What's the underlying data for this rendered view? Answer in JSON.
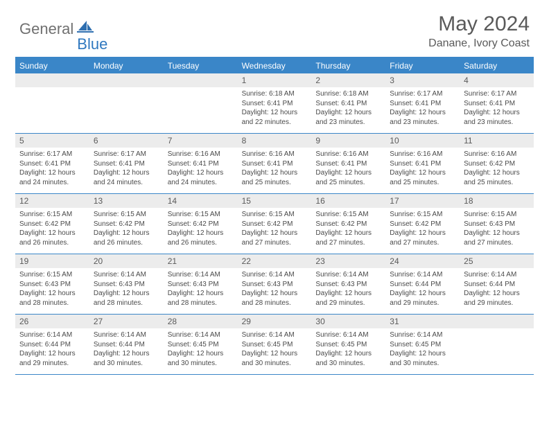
{
  "logo": {
    "text1": "General",
    "text2": "Blue"
  },
  "title": "May 2024",
  "location": "Danane, Ivory Coast",
  "colors": {
    "header_bg": "#3a86c8",
    "header_text": "#ffffff",
    "daynum_bg": "#ececec",
    "border": "#3a86c8",
    "text": "#4a4a4a",
    "logo_gray": "#707070",
    "logo_blue": "#2f78bf"
  },
  "weekdays": [
    "Sunday",
    "Monday",
    "Tuesday",
    "Wednesday",
    "Thursday",
    "Friday",
    "Saturday"
  ],
  "weeks": [
    [
      null,
      null,
      null,
      {
        "n": "1",
        "sr": "6:18 AM",
        "ss": "6:41 PM",
        "dl": "12 hours and 22 minutes."
      },
      {
        "n": "2",
        "sr": "6:18 AM",
        "ss": "6:41 PM",
        "dl": "12 hours and 23 minutes."
      },
      {
        "n": "3",
        "sr": "6:17 AM",
        "ss": "6:41 PM",
        "dl": "12 hours and 23 minutes."
      },
      {
        "n": "4",
        "sr": "6:17 AM",
        "ss": "6:41 PM",
        "dl": "12 hours and 23 minutes."
      }
    ],
    [
      {
        "n": "5",
        "sr": "6:17 AM",
        "ss": "6:41 PM",
        "dl": "12 hours and 24 minutes."
      },
      {
        "n": "6",
        "sr": "6:17 AM",
        "ss": "6:41 PM",
        "dl": "12 hours and 24 minutes."
      },
      {
        "n": "7",
        "sr": "6:16 AM",
        "ss": "6:41 PM",
        "dl": "12 hours and 24 minutes."
      },
      {
        "n": "8",
        "sr": "6:16 AM",
        "ss": "6:41 PM",
        "dl": "12 hours and 25 minutes."
      },
      {
        "n": "9",
        "sr": "6:16 AM",
        "ss": "6:41 PM",
        "dl": "12 hours and 25 minutes."
      },
      {
        "n": "10",
        "sr": "6:16 AM",
        "ss": "6:41 PM",
        "dl": "12 hours and 25 minutes."
      },
      {
        "n": "11",
        "sr": "6:16 AM",
        "ss": "6:42 PM",
        "dl": "12 hours and 25 minutes."
      }
    ],
    [
      {
        "n": "12",
        "sr": "6:15 AM",
        "ss": "6:42 PM",
        "dl": "12 hours and 26 minutes."
      },
      {
        "n": "13",
        "sr": "6:15 AM",
        "ss": "6:42 PM",
        "dl": "12 hours and 26 minutes."
      },
      {
        "n": "14",
        "sr": "6:15 AM",
        "ss": "6:42 PM",
        "dl": "12 hours and 26 minutes."
      },
      {
        "n": "15",
        "sr": "6:15 AM",
        "ss": "6:42 PM",
        "dl": "12 hours and 27 minutes."
      },
      {
        "n": "16",
        "sr": "6:15 AM",
        "ss": "6:42 PM",
        "dl": "12 hours and 27 minutes."
      },
      {
        "n": "17",
        "sr": "6:15 AM",
        "ss": "6:42 PM",
        "dl": "12 hours and 27 minutes."
      },
      {
        "n": "18",
        "sr": "6:15 AM",
        "ss": "6:43 PM",
        "dl": "12 hours and 27 minutes."
      }
    ],
    [
      {
        "n": "19",
        "sr": "6:15 AM",
        "ss": "6:43 PM",
        "dl": "12 hours and 28 minutes."
      },
      {
        "n": "20",
        "sr": "6:14 AM",
        "ss": "6:43 PM",
        "dl": "12 hours and 28 minutes."
      },
      {
        "n": "21",
        "sr": "6:14 AM",
        "ss": "6:43 PM",
        "dl": "12 hours and 28 minutes."
      },
      {
        "n": "22",
        "sr": "6:14 AM",
        "ss": "6:43 PM",
        "dl": "12 hours and 28 minutes."
      },
      {
        "n": "23",
        "sr": "6:14 AM",
        "ss": "6:43 PM",
        "dl": "12 hours and 29 minutes."
      },
      {
        "n": "24",
        "sr": "6:14 AM",
        "ss": "6:44 PM",
        "dl": "12 hours and 29 minutes."
      },
      {
        "n": "25",
        "sr": "6:14 AM",
        "ss": "6:44 PM",
        "dl": "12 hours and 29 minutes."
      }
    ],
    [
      {
        "n": "26",
        "sr": "6:14 AM",
        "ss": "6:44 PM",
        "dl": "12 hours and 29 minutes."
      },
      {
        "n": "27",
        "sr": "6:14 AM",
        "ss": "6:44 PM",
        "dl": "12 hours and 30 minutes."
      },
      {
        "n": "28",
        "sr": "6:14 AM",
        "ss": "6:45 PM",
        "dl": "12 hours and 30 minutes."
      },
      {
        "n": "29",
        "sr": "6:14 AM",
        "ss": "6:45 PM",
        "dl": "12 hours and 30 minutes."
      },
      {
        "n": "30",
        "sr": "6:14 AM",
        "ss": "6:45 PM",
        "dl": "12 hours and 30 minutes."
      },
      {
        "n": "31",
        "sr": "6:14 AM",
        "ss": "6:45 PM",
        "dl": "12 hours and 30 minutes."
      },
      null
    ]
  ],
  "labels": {
    "sunrise": "Sunrise:",
    "sunset": "Sunset:",
    "daylight": "Daylight:"
  }
}
